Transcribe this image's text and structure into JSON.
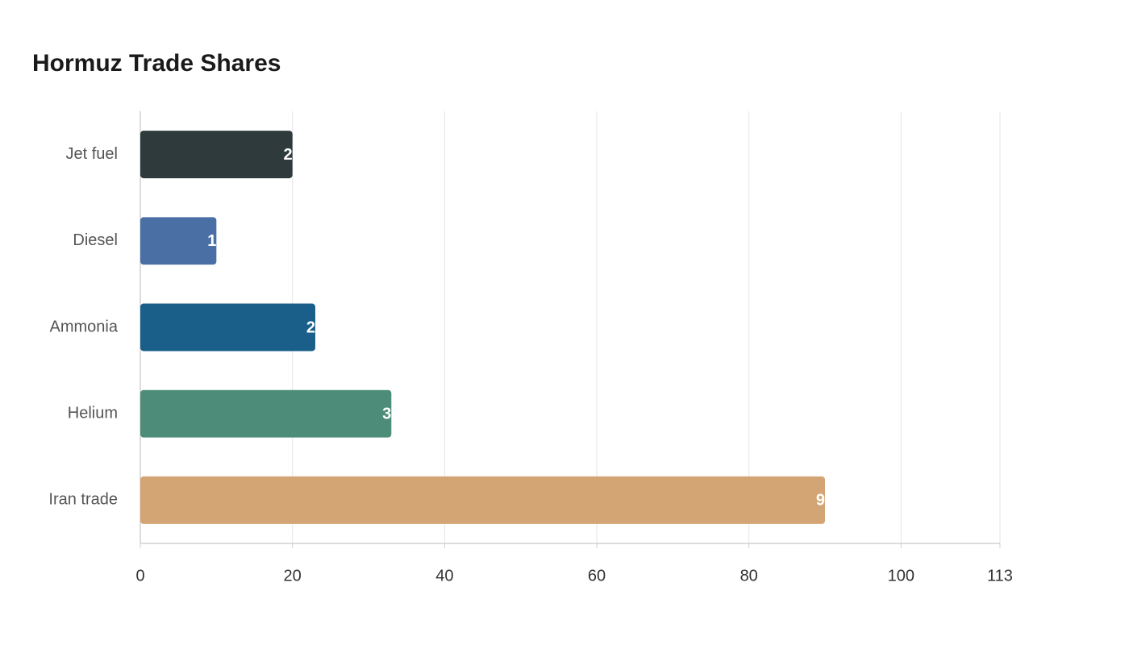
{
  "chart_data": {
    "type": "bar",
    "orientation": "horizontal",
    "title": "Hormuz Trade Shares",
    "categories": [
      "Jet fuel",
      "Diesel",
      "Ammonia",
      "Helium",
      "Iran trade"
    ],
    "values": [
      20,
      10,
      23,
      33,
      90
    ],
    "colors": [
      "#2e3a3b",
      "#4a6fa5",
      "#1a5f8a",
      "#4e8c7a",
      "#d4a574"
    ],
    "xlim": [
      0,
      113
    ],
    "xticks": [
      0,
      20,
      40,
      60,
      80,
      100,
      113
    ],
    "grid": true
  }
}
